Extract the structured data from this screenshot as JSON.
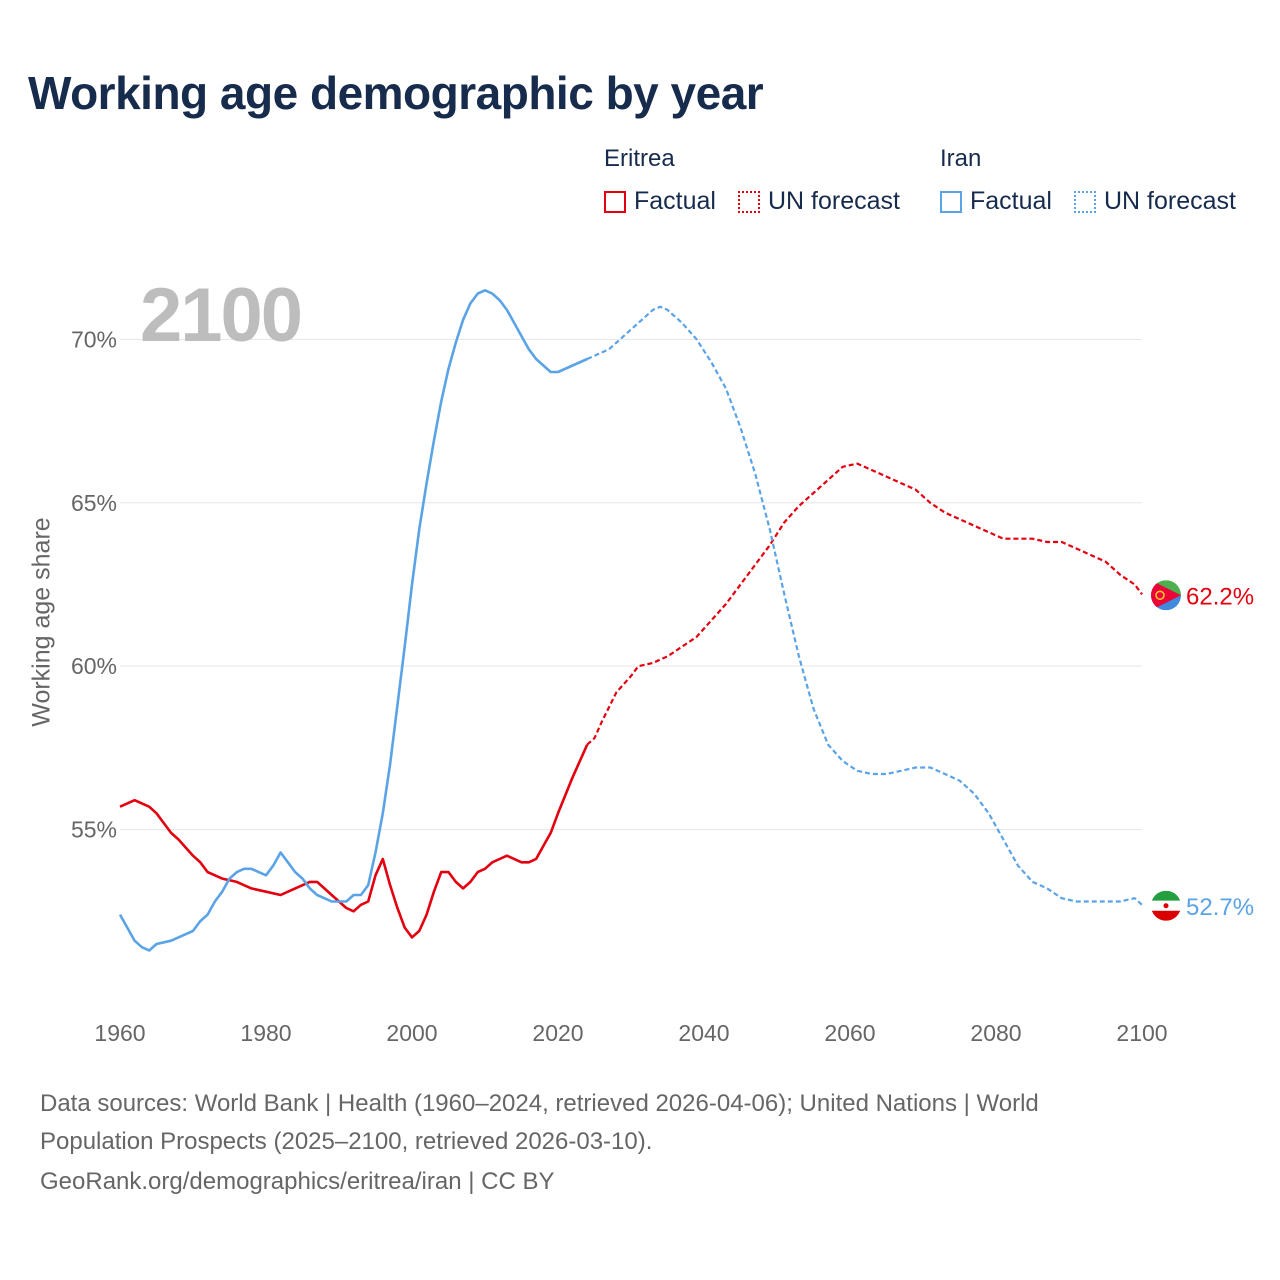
{
  "title": "Working age demographic by year",
  "legend": {
    "eritrea": {
      "name": "Eritrea",
      "factual": "Factual",
      "forecast": "UN forecast"
    },
    "iran": {
      "name": "Iran",
      "factual": "Factual",
      "forecast": "UN forecast"
    }
  },
  "colors": {
    "eritrea": "#e3000f",
    "iran": "#5aa3e6"
  },
  "year_label": "2100",
  "footer": {
    "line1": "Data sources: World Bank | Health (1960–2024, retrieved 2026-04-06); United Nations | World",
    "line2": "Population Prospects (2025–2100, retrieved 2026-03-10).",
    "line3": "GeoRank.org/demographics/eritrea/iran | CC BY"
  },
  "chart_data": {
    "type": "line",
    "title": "Working age demographic by year",
    "xlabel": "",
    "ylabel": "Working age share",
    "xlim": [
      1960,
      2100
    ],
    "ylim": [
      50,
      72
    ],
    "x_ticks": [
      "1960",
      "1980",
      "2000",
      "2020",
      "2040",
      "2060",
      "2080",
      "2100"
    ],
    "y_ticks": [
      "55%",
      "60%",
      "65%",
      "70%"
    ],
    "y_tick_values": [
      55,
      60,
      65,
      70
    ],
    "factual_years": [
      1960,
      2024
    ],
    "forecast_years": [
      2025,
      2100
    ],
    "series": [
      {
        "name": "Eritrea",
        "end_label": "62.2%",
        "points": [
          [
            1960,
            55.7
          ],
          [
            1962,
            55.9
          ],
          [
            1964,
            55.7
          ],
          [
            1965,
            55.5
          ],
          [
            1966,
            55.2
          ],
          [
            1967,
            54.9
          ],
          [
            1968,
            54.7
          ],
          [
            1970,
            54.2
          ],
          [
            1971,
            54.0
          ],
          [
            1972,
            53.7
          ],
          [
            1974,
            53.5
          ],
          [
            1976,
            53.4
          ],
          [
            1978,
            53.2
          ],
          [
            1980,
            53.1
          ],
          [
            1982,
            53.0
          ],
          [
            1984,
            53.2
          ],
          [
            1986,
            53.4
          ],
          [
            1987,
            53.4
          ],
          [
            1988,
            53.2
          ],
          [
            1989,
            53.0
          ],
          [
            1990,
            52.8
          ],
          [
            1991,
            52.6
          ],
          [
            1992,
            52.5
          ],
          [
            1993,
            52.7
          ],
          [
            1994,
            52.8
          ],
          [
            1995,
            53.6
          ],
          [
            1996,
            54.1
          ],
          [
            1997,
            53.3
          ],
          [
            1998,
            52.6
          ],
          [
            1999,
            52.0
          ],
          [
            2000,
            51.7
          ],
          [
            2001,
            51.9
          ],
          [
            2002,
            52.4
          ],
          [
            2003,
            53.1
          ],
          [
            2004,
            53.7
          ],
          [
            2005,
            53.7
          ],
          [
            2006,
            53.4
          ],
          [
            2007,
            53.2
          ],
          [
            2008,
            53.4
          ],
          [
            2009,
            53.7
          ],
          [
            2010,
            53.8
          ],
          [
            2011,
            54.0
          ],
          [
            2012,
            54.1
          ],
          [
            2013,
            54.2
          ],
          [
            2015,
            54.0
          ],
          [
            2016,
            54.0
          ],
          [
            2017,
            54.1
          ],
          [
            2018,
            54.5
          ],
          [
            2019,
            54.9
          ],
          [
            2020,
            55.5
          ],
          [
            2022,
            56.6
          ],
          [
            2024,
            57.6
          ],
          [
            2025,
            57.8
          ],
          [
            2026,
            58.3
          ],
          [
            2028,
            59.2
          ],
          [
            2030,
            59.7
          ],
          [
            2031,
            60.0
          ],
          [
            2033,
            60.1
          ],
          [
            2035,
            60.3
          ],
          [
            2037,
            60.6
          ],
          [
            2039,
            60.9
          ],
          [
            2041,
            61.4
          ],
          [
            2043,
            61.9
          ],
          [
            2045,
            62.5
          ],
          [
            2047,
            63.1
          ],
          [
            2049,
            63.7
          ],
          [
            2051,
            64.4
          ],
          [
            2053,
            64.9
          ],
          [
            2055,
            65.3
          ],
          [
            2057,
            65.7
          ],
          [
            2059,
            66.1
          ],
          [
            2061,
            66.2
          ],
          [
            2063,
            66.0
          ],
          [
            2065,
            65.8
          ],
          [
            2067,
            65.6
          ],
          [
            2069,
            65.4
          ],
          [
            2071,
            65.0
          ],
          [
            2073,
            64.7
          ],
          [
            2075,
            64.5
          ],
          [
            2077,
            64.3
          ],
          [
            2079,
            64.1
          ],
          [
            2081,
            63.9
          ],
          [
            2083,
            63.9
          ],
          [
            2085,
            63.9
          ],
          [
            2087,
            63.8
          ],
          [
            2089,
            63.8
          ],
          [
            2091,
            63.6
          ],
          [
            2093,
            63.4
          ],
          [
            2095,
            63.2
          ],
          [
            2097,
            62.8
          ],
          [
            2099,
            62.5
          ],
          [
            2100,
            62.2
          ]
        ]
      },
      {
        "name": "Iran",
        "end_label": "52.7%",
        "points": [
          [
            1960,
            52.4
          ],
          [
            1961,
            52.0
          ],
          [
            1962,
            51.6
          ],
          [
            1963,
            51.4
          ],
          [
            1964,
            51.3
          ],
          [
            1965,
            51.5
          ],
          [
            1967,
            51.6
          ],
          [
            1969,
            51.8
          ],
          [
            1970,
            51.9
          ],
          [
            1971,
            52.2
          ],
          [
            1972,
            52.4
          ],
          [
            1973,
            52.8
          ],
          [
            1974,
            53.1
          ],
          [
            1975,
            53.5
          ],
          [
            1976,
            53.7
          ],
          [
            1977,
            53.8
          ],
          [
            1978,
            53.8
          ],
          [
            1979,
            53.7
          ],
          [
            1980,
            53.6
          ],
          [
            1981,
            53.9
          ],
          [
            1982,
            54.3
          ],
          [
            1983,
            54.0
          ],
          [
            1984,
            53.7
          ],
          [
            1985,
            53.5
          ],
          [
            1986,
            53.2
          ],
          [
            1987,
            53.0
          ],
          [
            1988,
            52.9
          ],
          [
            1989,
            52.8
          ],
          [
            1990,
            52.8
          ],
          [
            1991,
            52.8
          ],
          [
            1992,
            53.0
          ],
          [
            1993,
            53.0
          ],
          [
            1994,
            53.3
          ],
          [
            1995,
            54.3
          ],
          [
            1996,
            55.5
          ],
          [
            1997,
            57.0
          ],
          [
            1998,
            58.8
          ],
          [
            1999,
            60.6
          ],
          [
            2000,
            62.5
          ],
          [
            2001,
            64.2
          ],
          [
            2002,
            65.6
          ],
          [
            2003,
            66.9
          ],
          [
            2004,
            68.1
          ],
          [
            2005,
            69.1
          ],
          [
            2006,
            69.9
          ],
          [
            2007,
            70.6
          ],
          [
            2008,
            71.1
          ],
          [
            2009,
            71.4
          ],
          [
            2010,
            71.5
          ],
          [
            2011,
            71.4
          ],
          [
            2012,
            71.2
          ],
          [
            2013,
            70.9
          ],
          [
            2014,
            70.5
          ],
          [
            2015,
            70.1
          ],
          [
            2016,
            69.7
          ],
          [
            2017,
            69.4
          ],
          [
            2018,
            69.2
          ],
          [
            2019,
            69.0
          ],
          [
            2020,
            69.0
          ],
          [
            2022,
            69.2
          ],
          [
            2024,
            69.4
          ],
          [
            2025,
            69.5
          ],
          [
            2027,
            69.7
          ],
          [
            2029,
            70.1
          ],
          [
            2031,
            70.5
          ],
          [
            2033,
            70.9
          ],
          [
            2034,
            71.0
          ],
          [
            2035,
            70.9
          ],
          [
            2037,
            70.5
          ],
          [
            2039,
            70.0
          ],
          [
            2041,
            69.3
          ],
          [
            2043,
            68.5
          ],
          [
            2045,
            67.3
          ],
          [
            2047,
            65.9
          ],
          [
            2049,
            64.2
          ],
          [
            2051,
            62.2
          ],
          [
            2053,
            60.3
          ],
          [
            2055,
            58.7
          ],
          [
            2057,
            57.6
          ],
          [
            2059,
            57.1
          ],
          [
            2061,
            56.8
          ],
          [
            2063,
            56.7
          ],
          [
            2065,
            56.7
          ],
          [
            2067,
            56.8
          ],
          [
            2069,
            56.9
          ],
          [
            2071,
            56.9
          ],
          [
            2073,
            56.7
          ],
          [
            2075,
            56.5
          ],
          [
            2077,
            56.1
          ],
          [
            2079,
            55.5
          ],
          [
            2081,
            54.7
          ],
          [
            2083,
            53.9
          ],
          [
            2085,
            53.4
          ],
          [
            2087,
            53.2
          ],
          [
            2089,
            52.9
          ],
          [
            2091,
            52.8
          ],
          [
            2093,
            52.8
          ],
          [
            2095,
            52.8
          ],
          [
            2097,
            52.8
          ],
          [
            2099,
            52.9
          ],
          [
            2100,
            52.7
          ]
        ]
      }
    ]
  }
}
